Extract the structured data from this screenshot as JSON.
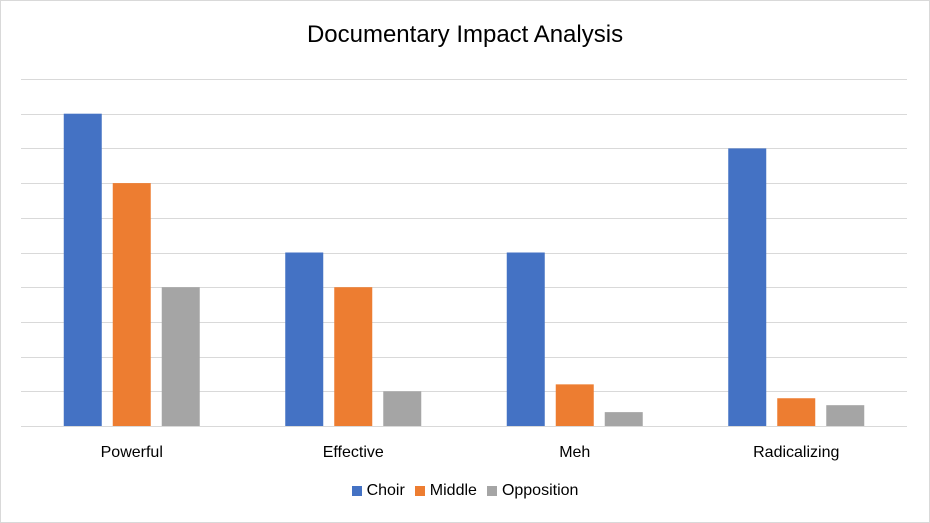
{
  "chart_data": {
    "type": "bar",
    "title": "Documentary Impact Analysis",
    "xlabel": "",
    "ylabel": "",
    "categories": [
      "Powerful",
      "Effective",
      "Meh",
      "Radicalizing"
    ],
    "series": [
      {
        "name": "Choir",
        "color": "#4472C4",
        "values": [
          9,
          5,
          5,
          8
        ]
      },
      {
        "name": "Middle",
        "color": "#ED7D31",
        "values": [
          7,
          4,
          1.2,
          0.8
        ]
      },
      {
        "name": "Opposition",
        "color": "#A5A5A5",
        "values": [
          4,
          1,
          0.4,
          0.6
        ]
      }
    ],
    "ylim": [
      0,
      10
    ],
    "grid": true,
    "gridline_step": 1,
    "y_tick_labels_visible": false,
    "legend_position": "bottom"
  }
}
